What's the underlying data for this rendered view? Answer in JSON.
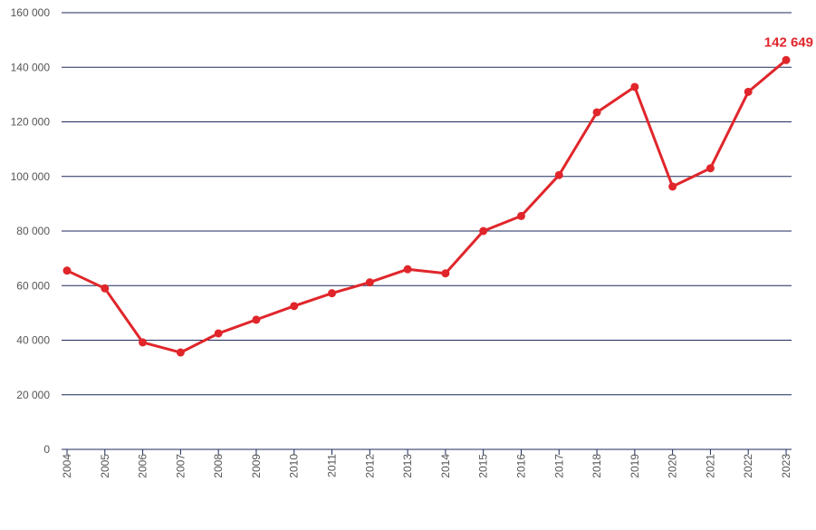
{
  "chart_data": {
    "type": "line",
    "title": "",
    "xlabel": "",
    "ylabel": "",
    "x": [
      "2004",
      "2005",
      "2006",
      "2007",
      "2008",
      "2009",
      "2010",
      "2011",
      "2012",
      "2013",
      "2014",
      "2015",
      "2016",
      "2017",
      "2018",
      "2019",
      "2020",
      "2021",
      "2022",
      "2023"
    ],
    "series": [
      {
        "values": [
          65500,
          59000,
          39200,
          35500,
          42500,
          47500,
          52500,
          57200,
          61200,
          66000,
          64500,
          80000,
          85500,
          100500,
          123500,
          132800,
          96300,
          103000,
          131000,
          142649
        ]
      }
    ],
    "ylim": [
      0,
      160000
    ],
    "yticks": [
      0,
      20000,
      40000,
      60000,
      80000,
      100000,
      120000,
      140000,
      160000
    ],
    "ytick_labels": [
      "0",
      "20 000",
      "40 000",
      "60 000",
      "80 000",
      "100 000",
      "120 000",
      "140 000",
      "160 000"
    ],
    "grid": true,
    "legend": "none",
    "colors": {
      "line": "#e0262b",
      "grid": "#1f2a5c",
      "axis_text": "#555555"
    },
    "annotations": [
      {
        "text": "142 649",
        "x": "2023",
        "y": 142649,
        "color": "#e0262b"
      }
    ]
  }
}
